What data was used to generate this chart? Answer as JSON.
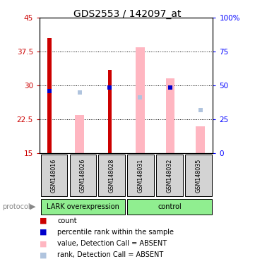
{
  "title": "GDS2553 / 142097_at",
  "samples": [
    "GSM148016",
    "GSM148026",
    "GSM148028",
    "GSM148031",
    "GSM148032",
    "GSM148035"
  ],
  "ylim_left": [
    15,
    45
  ],
  "ylim_right": [
    0,
    100
  ],
  "yticks_left": [
    15,
    22.5,
    30,
    37.5,
    45
  ],
  "yticks_right": [
    0,
    25,
    50,
    75,
    100
  ],
  "count_values": [
    40.5,
    null,
    33.5,
    null,
    null,
    null
  ],
  "count_color": "#CC0000",
  "rank_values": [
    28.8,
    null,
    29.6,
    null,
    29.5,
    null
  ],
  "rank_color": "#0000CC",
  "absent_value_values": [
    null,
    23.5,
    null,
    38.5,
    31.5,
    21.0
  ],
  "absent_value_color": "#FFB6C1",
  "absent_rank_values": [
    null,
    28.5,
    null,
    27.3,
    null,
    24.5
  ],
  "absent_rank_color": "#B0C4DE",
  "bar_bottom": 15,
  "group_boundaries": [
    [
      0,
      3,
      "LARK overexpression"
    ],
    [
      3,
      6,
      "control"
    ]
  ],
  "group_color": "#90EE90",
  "legend_items": [
    {
      "label": "count",
      "color": "#CC0000"
    },
    {
      "label": "percentile rank within the sample",
      "color": "#0000CC"
    },
    {
      "label": "value, Detection Call = ABSENT",
      "color": "#FFB6C1"
    },
    {
      "label": "rank, Detection Call = ABSENT",
      "color": "#B0C4DE"
    }
  ]
}
